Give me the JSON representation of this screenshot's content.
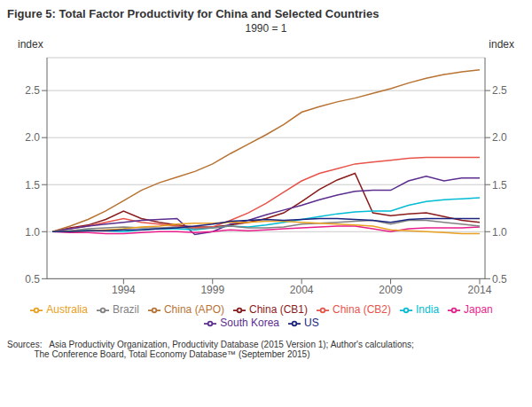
{
  "chart_data": {
    "type": "line",
    "title": "Figure 5: Total Factor Productivity for China and Selected Countries",
    "subtitle": "1990 = 1",
    "source": "Sources:   Asia Productivity Organization, Productivity Database (2015 Version 1); Author's calculations;\n           The Conference Board, Total Economy Database™ (September 2015)",
    "ylabel": "index",
    "y2label": "index",
    "x": [
      1990,
      1991,
      1992,
      1993,
      1994,
      1995,
      1996,
      1997,
      1998,
      1999,
      2000,
      2001,
      2002,
      2003,
      2004,
      2005,
      2006,
      2007,
      2008,
      2009,
      2010,
      2011,
      2012,
      2013,
      2014
    ],
    "xlim": [
      1989.7,
      2014.3
    ],
    "xticks": [
      1994,
      1999,
      2004,
      2009,
      2014
    ],
    "ylim": [
      0.5,
      2.85
    ],
    "yticks": [
      0.5,
      {
        "value": 1.0,
        "label": "1.0"
      },
      1.5,
      {
        "value": 2.0,
        "label": "2.0"
      },
      2.5
    ],
    "y2lim": [
      0.5,
      2.85
    ],
    "y2ticks": [
      0.5,
      {
        "value": 1.0,
        "label": "1.0"
      },
      1.5,
      {
        "value": 2.0,
        "label": "2.0"
      },
      2.5
    ],
    "grid": "y",
    "legend": "bottom",
    "series": [
      {
        "name": "China (CB1)",
        "color": "#8b1a1a",
        "values": [
          1.0,
          1.04,
          1.07,
          1.13,
          1.22,
          1.14,
          1.1,
          1.07,
          1.05,
          1.05,
          1.07,
          1.1,
          1.14,
          1.2,
          1.32,
          1.45,
          1.55,
          1.62,
          1.2,
          1.17,
          1.19,
          1.2,
          1.16,
          1.12,
          1.1
        ]
      },
      {
        "name": "China (CB2)",
        "color": "#e8534a",
        "values": [
          1.0,
          1.03,
          1.06,
          1.1,
          1.14,
          1.1,
          1.08,
          1.06,
          1.04,
          1.05,
          1.12,
          1.2,
          1.3,
          1.42,
          1.54,
          1.62,
          1.67,
          1.72,
          1.74,
          1.76,
          1.78,
          1.79,
          1.79,
          1.79,
          1.79
        ]
      },
      {
        "name": "China (APO)",
        "color": "#b87333",
        "values": [
          1.0,
          1.06,
          1.13,
          1.22,
          1.33,
          1.44,
          1.52,
          1.58,
          1.64,
          1.72,
          1.83,
          1.93,
          2.03,
          2.14,
          2.27,
          2.33,
          2.38,
          2.42,
          2.47,
          2.52,
          2.58,
          2.63,
          2.67,
          2.7,
          2.72
        ]
      },
      {
        "name": "South Korea",
        "color": "#5b2d8e",
        "values": [
          1.0,
          1.03,
          1.06,
          1.08,
          1.1,
          1.12,
          1.13,
          1.14,
          0.97,
          1.0,
          1.08,
          1.12,
          1.18,
          1.23,
          1.28,
          1.34,
          1.39,
          1.43,
          1.44,
          1.44,
          1.54,
          1.59,
          1.54,
          1.57,
          1.57
        ]
      },
      {
        "name": "Japan",
        "color": "#e91e8c",
        "values": [
          1.0,
          0.99,
          0.99,
          0.98,
          0.98,
          0.99,
          1.0,
          1.0,
          0.99,
          1.0,
          1.02,
          1.01,
          1.02,
          1.03,
          1.04,
          1.05,
          1.06,
          1.06,
          1.03,
          1.0,
          1.03,
          1.04,
          1.04,
          1.04,
          1.05
        ]
      },
      {
        "name": "India",
        "color": "#00bcd4",
        "values": [
          1.0,
          1.01,
          1.02,
          1.01,
          1.0,
          1.02,
          1.03,
          1.03,
          1.02,
          1.04,
          1.06,
          1.05,
          1.07,
          1.1,
          1.13,
          1.16,
          1.19,
          1.21,
          1.22,
          1.22,
          1.28,
          1.32,
          1.34,
          1.35,
          1.36
        ]
      },
      {
        "name": "Brazil",
        "color": "#808080",
        "values": [
          1.0,
          1.01,
          1.03,
          1.04,
          1.05,
          1.04,
          1.04,
          1.05,
          1.03,
          1.04,
          1.06,
          1.04,
          1.04,
          1.05,
          1.08,
          1.09,
          1.1,
          1.11,
          1.12,
          1.08,
          1.12,
          1.12,
          1.1,
          1.08,
          1.06
        ]
      },
      {
        "name": "Australia",
        "color": "#e8a020",
        "values": [
          1.0,
          1.0,
          1.01,
          1.02,
          1.03,
          1.05,
          1.06,
          1.08,
          1.09,
          1.09,
          1.1,
          1.1,
          1.11,
          1.11,
          1.1,
          1.09,
          1.08,
          1.07,
          1.06,
          1.02,
          1.01,
          1.0,
          0.99,
          0.98,
          0.98
        ]
      },
      {
        "name": "US",
        "color": "#1a237e",
        "values": [
          1.0,
          1.0,
          1.01,
          1.01,
          1.02,
          1.02,
          1.03,
          1.04,
          1.06,
          1.08,
          1.11,
          1.12,
          1.13,
          1.12,
          1.13,
          1.14,
          1.14,
          1.13,
          1.12,
          1.1,
          1.13,
          1.14,
          1.14,
          1.14,
          1.14
        ]
      }
    ]
  }
}
